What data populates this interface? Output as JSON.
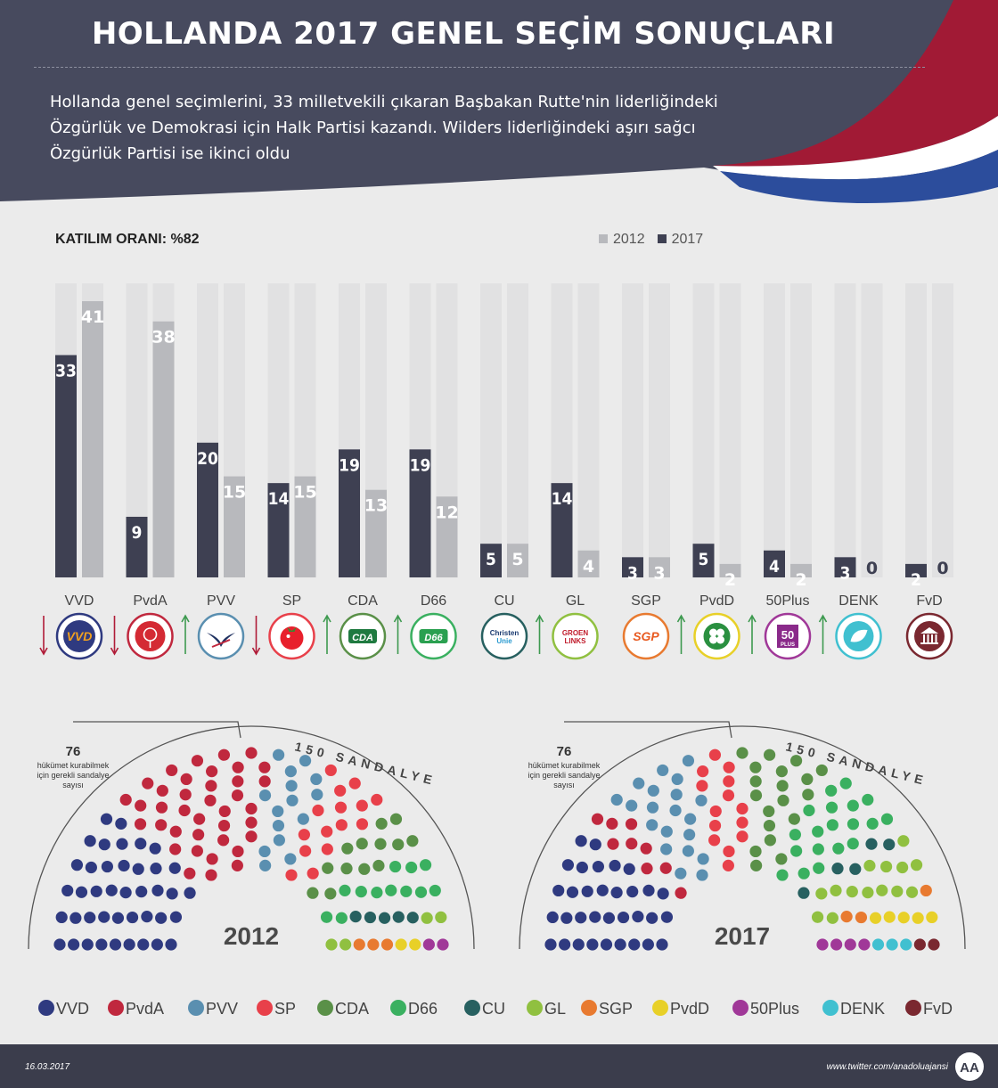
{
  "header": {
    "title": "HOLLANDA 2017 GENEL SEÇİM SONUÇLARI",
    "subtitle_lines": [
      "Hollanda genel seçimlerini, 33 milletvekili çıkaran Başbakan Rutte'nin liderliğindeki",
      "Özgürlük ve Demokrasi için Halk Partisi kazandı. Wilders liderliğindeki aşırı sağcı",
      "Özgürlük Partisi ise ikinci oldu"
    ]
  },
  "turnout_label": "KATILIM ORANI: %82",
  "legend_years": [
    {
      "label": "2012",
      "color": "#b8b9bd"
    },
    {
      "label": "2017",
      "color": "#3e4052"
    }
  ],
  "chart_data": {
    "type": "bar",
    "categories": [
      "VVD",
      "PvdA",
      "PVV",
      "SP",
      "CDA",
      "D66",
      "CU",
      "GL",
      "SGP",
      "PvdD",
      "50Plus",
      "DENK",
      "FvD"
    ],
    "series": [
      {
        "name": "2017",
        "color": "#3e4052",
        "values": [
          33,
          9,
          20,
          14,
          19,
          19,
          5,
          14,
          3,
          5,
          4,
          3,
          2
        ]
      },
      {
        "name": "2012",
        "color": "#b8b9bd",
        "values": [
          41,
          38,
          15,
          15,
          13,
          12,
          5,
          4,
          3,
          2,
          2,
          0,
          0
        ]
      }
    ],
    "ylim": [
      0,
      41
    ],
    "trend": [
      "down",
      "down",
      "up",
      "down",
      "up",
      "up",
      "",
      "up",
      "",
      "up",
      "up",
      "up",
      ""
    ]
  },
  "parties": [
    {
      "name": "VVD",
      "color": "#2f3a80",
      "logo": "VVD"
    },
    {
      "name": "PvdA",
      "color": "#c0283e",
      "logo": "rose"
    },
    {
      "name": "PVV",
      "color": "#5a8fb0",
      "logo": "seagull"
    },
    {
      "name": "SP",
      "color": "#e8404a",
      "logo": "tomato"
    },
    {
      "name": "CDA",
      "color": "#5a9048",
      "logo": "CDA"
    },
    {
      "name": "D66",
      "color": "#3ab060",
      "logo": "D66"
    },
    {
      "name": "CU",
      "color": "#276060",
      "logo": "Christen Unie"
    },
    {
      "name": "GL",
      "color": "#90c040",
      "logo": "GROEN LINKS"
    },
    {
      "name": "SGP",
      "color": "#e87a30",
      "logo": "SGP"
    },
    {
      "name": "PvdD",
      "color": "#e8d028",
      "logo": "clover"
    },
    {
      "name": "50Plus",
      "color": "#a03898",
      "logo": "50 PLUS"
    },
    {
      "name": "DENK",
      "color": "#40c0d0",
      "logo": "leaf"
    },
    {
      "name": "FvD",
      "color": "#7a2830",
      "logo": "temple"
    }
  ],
  "parliament": {
    "majority_number": "76",
    "majority_text": [
      "hükümet kurabilmek",
      "için gerekli sandalye",
      "sayısı"
    ],
    "seats_label": "150 SANDALYE",
    "charts": [
      {
        "year": "2012",
        "seats": [
          41,
          38,
          15,
          15,
          13,
          12,
          5,
          4,
          3,
          2,
          2,
          0,
          0
        ]
      },
      {
        "year": "2017",
        "seats": [
          33,
          9,
          20,
          14,
          19,
          19,
          5,
          14,
          3,
          5,
          4,
          3,
          2
        ]
      }
    ]
  },
  "footer": {
    "date": "16.03.2017",
    "twitter": "www.twitter.com/anadoluajansi",
    "logo_text": "AA"
  }
}
